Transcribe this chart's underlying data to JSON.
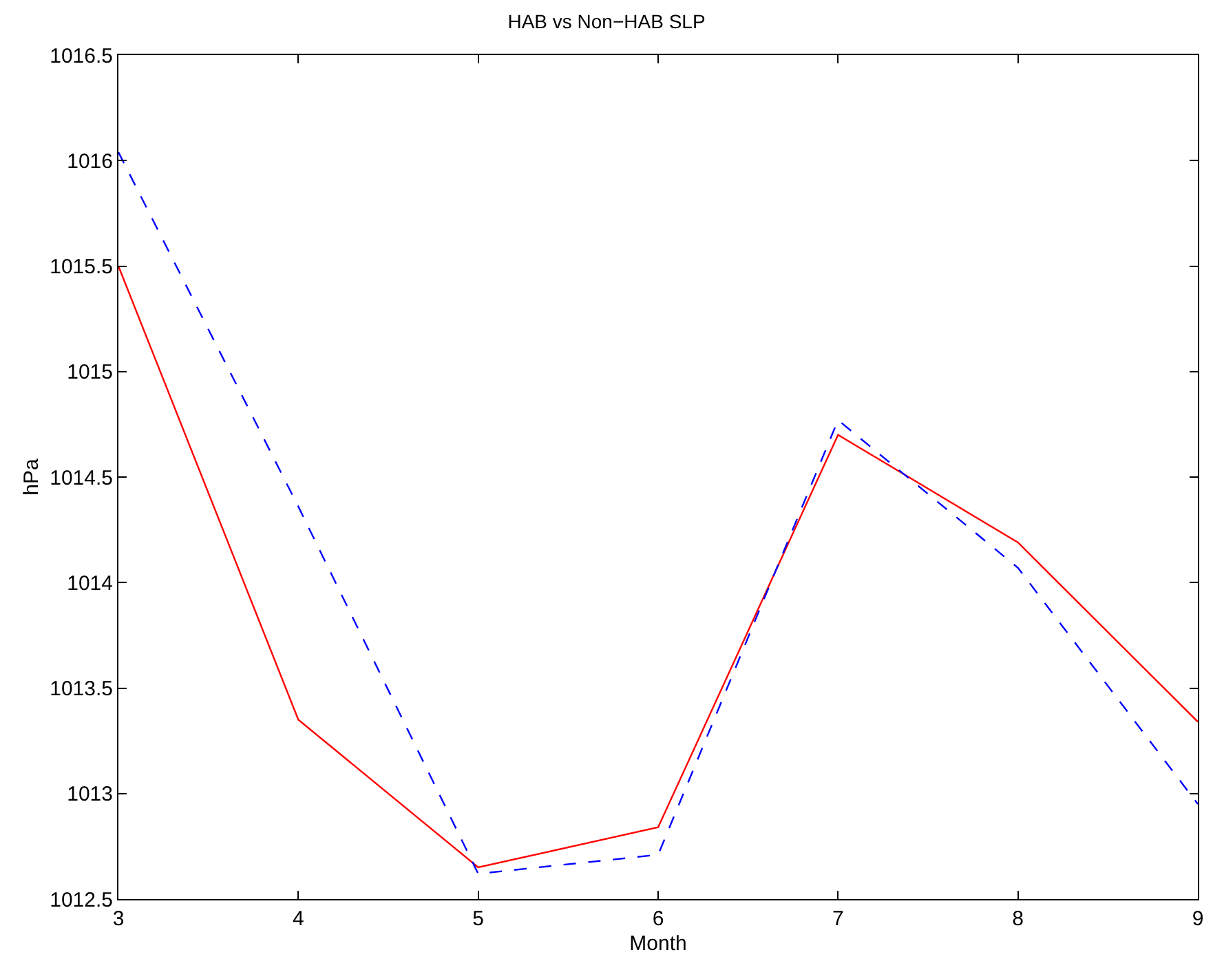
{
  "chart_data": {
    "type": "line",
    "title": "HAB vs Non−HAB SLP",
    "xlabel": "Month",
    "ylabel": "hPa",
    "x": [
      3,
      4,
      5,
      6,
      7,
      8,
      9
    ],
    "series": [
      {
        "color": "#ff0000",
        "line_style": "solid",
        "values": [
          1015.5,
          1013.35,
          1012.65,
          1012.84,
          1014.7,
          1014.19,
          1013.34
        ]
      },
      {
        "color": "#0000ff",
        "line_style": "dashed",
        "values": [
          1016.04,
          1014.36,
          1012.62,
          1012.71,
          1014.77,
          1014.07,
          1012.95
        ]
      }
    ],
    "xlim": [
      3,
      9
    ],
    "xticks": [
      3,
      4,
      5,
      6,
      7,
      8,
      9
    ],
    "ylim": [
      1012.5,
      1016.5
    ],
    "yticks": [
      1012.5,
      1013,
      1013.5,
      1014,
      1014.5,
      1015,
      1015.5,
      1016,
      1016.5
    ],
    "grid": false,
    "marker": "none"
  }
}
